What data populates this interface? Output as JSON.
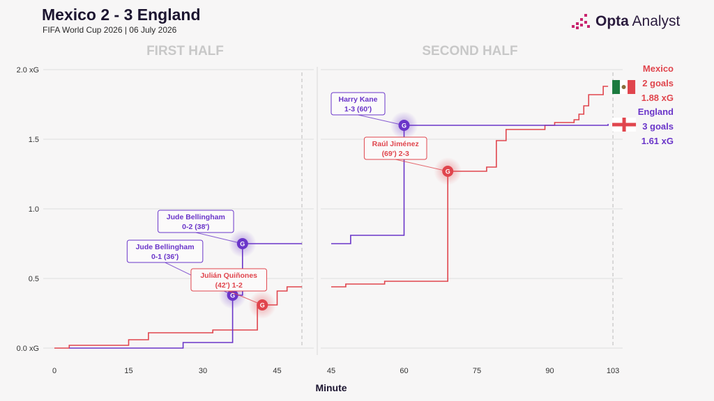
{
  "header": {
    "title": "Mexico 2 - 3 England",
    "subtitle": "FIFA World Cup 2026 | 06 July 2026",
    "logo_bold": "Opta",
    "logo_light": "Analyst"
  },
  "colors": {
    "mexico": "#e0454d",
    "england": "#6a35c9",
    "grid": "#dedede",
    "halfLabel": "#c8c8c8"
  },
  "chart_data": {
    "type": "line",
    "step": true,
    "xlabel": "Minute",
    "ylim": [
      0,
      2.0
    ],
    "yticks": [
      {
        "v": 0,
        "label": "0.0 xG"
      },
      {
        "v": 0.5,
        "label": "0.5"
      },
      {
        "v": 1.0,
        "label": "1.0"
      },
      {
        "v": 1.5,
        "label": "1.5"
      },
      {
        "v": 2.0,
        "label": "2.0 xG"
      }
    ],
    "halves": [
      {
        "title": "FIRST HALF",
        "xmin": 0,
        "xmax": 50,
        "end": 50,
        "ticks": [
          0,
          15,
          30,
          45
        ]
      },
      {
        "title": "SECOND HALF",
        "xmin": 45,
        "xmax": 105,
        "end": 103,
        "ticks": [
          45,
          60,
          75,
          90,
          103
        ]
      }
    ],
    "series": [
      {
        "name": "Mexico",
        "key": "mexico",
        "first_half": [
          [
            0,
            0
          ],
          [
            3,
            0.02
          ],
          [
            15,
            0.06
          ],
          [
            19,
            0.11
          ],
          [
            32,
            0.13
          ],
          [
            41,
            0.31
          ],
          [
            45,
            0.41
          ],
          [
            47,
            0.44
          ],
          [
            50,
            0.44
          ]
        ],
        "second_half": [
          [
            45,
            0.44
          ],
          [
            48,
            0.46
          ],
          [
            56,
            0.48
          ],
          [
            69,
            1.27
          ],
          [
            77,
            1.3
          ],
          [
            79,
            1.49
          ],
          [
            81,
            1.57
          ],
          [
            89,
            1.6
          ],
          [
            91,
            1.62
          ],
          [
            95,
            1.64
          ],
          [
            96,
            1.68
          ],
          [
            97,
            1.74
          ],
          [
            98,
            1.82
          ],
          [
            101,
            1.88
          ],
          [
            102,
            1.88
          ]
        ]
      },
      {
        "name": "England",
        "key": "england",
        "first_half": [
          [
            3,
            0
          ],
          [
            26,
            0.04
          ],
          [
            36,
            0.38
          ],
          [
            38,
            0.75
          ],
          [
            50,
            0.75
          ]
        ],
        "second_half": [
          [
            45,
            0.75
          ],
          [
            49,
            0.81
          ],
          [
            60,
            1.6
          ],
          [
            102,
            1.61
          ]
        ]
      }
    ],
    "goals": [
      {
        "half": 0,
        "x": 36,
        "y": 0.38,
        "team": "england",
        "label": [
          "Jude Bellingham",
          "0-1 (36')"
        ]
      },
      {
        "half": 0,
        "x": 38,
        "y": 0.75,
        "team": "england",
        "label": [
          "Jude Bellingham",
          "0-2 (38')"
        ]
      },
      {
        "half": 0,
        "x": 42,
        "y": 0.31,
        "team": "mexico",
        "label": [
          "Julián Quiñones",
          "(42') 1-2"
        ]
      },
      {
        "half": 1,
        "x": 60,
        "y": 1.6,
        "team": "england",
        "label": [
          "Harry Kane",
          "1-3 (60')"
        ]
      },
      {
        "half": 1,
        "x": 69,
        "y": 1.27,
        "team": "mexico",
        "label": [
          "Raúl Jiménez",
          "(69') 2-3"
        ]
      }
    ],
    "goal_marker": "G",
    "legend": [
      {
        "team": "Mexico",
        "goals": "2 goals",
        "xg": "1.88 xG",
        "key": "mexico",
        "flag": "mexico-flag"
      },
      {
        "team": "England",
        "goals": "3 goals",
        "xg": "1.61 xG",
        "key": "england",
        "flag": "england-flag"
      }
    ]
  }
}
